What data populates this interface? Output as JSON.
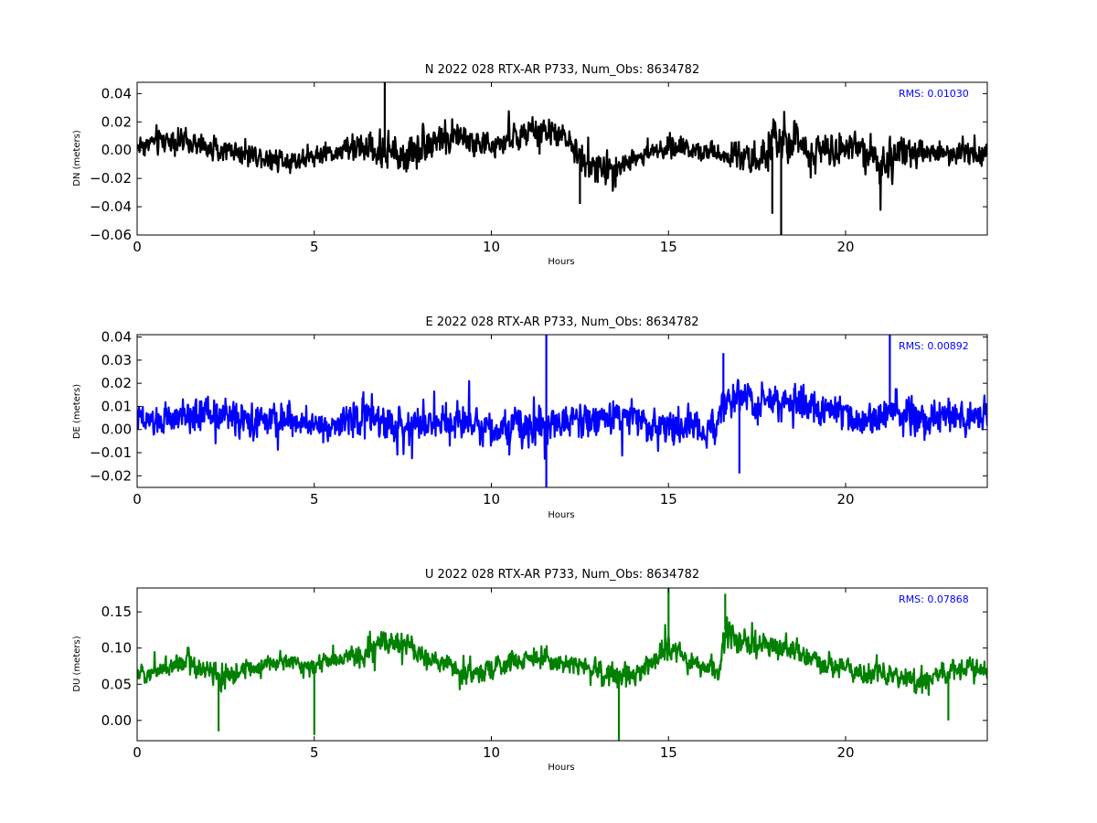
{
  "chart_data": [
    {
      "type": "line",
      "title": "N 2022 028 RTX-AR  P733, Num_Obs: 8634782",
      "xlabel": "Hours",
      "ylabel": "DN (meters)",
      "xlim": [
        0,
        24
      ],
      "ylim": [
        -0.06,
        0.048
      ],
      "xticks": [
        0,
        5,
        10,
        15,
        20
      ],
      "xtick_labels": [
        "0",
        "5",
        "10",
        "15",
        "20"
      ],
      "yticks": [
        -0.06,
        -0.04,
        -0.02,
        0.0,
        0.02,
        0.04
      ],
      "ytick_labels": [
        "−0.06",
        "−0.04",
        "−0.02",
        "0.00",
        "0.02",
        "0.04"
      ],
      "annotation": "RMS:  0.01030",
      "annotation_color": "#0000ff",
      "grid": false,
      "series": [
        {
          "color": "#000000",
          "x": [
            0,
            0.5,
            1,
            1.5,
            2,
            2.5,
            3,
            3.5,
            4,
            4.5,
            5,
            5.5,
            6,
            6.5,
            7,
            7.5,
            8,
            8.5,
            9,
            9.5,
            10,
            10.5,
            11,
            11.5,
            12,
            12.5,
            13,
            13.5,
            14,
            14.5,
            15,
            15.5,
            16,
            16.5,
            17,
            17.5,
            18,
            18.5,
            19,
            19.5,
            20,
            20.5,
            21,
            21.5,
            22,
            22.5,
            23,
            23.5,
            24
          ],
          "y_center": [
            0.003,
            0.006,
            0.008,
            0.004,
            0.002,
            0.0,
            -0.002,
            -0.004,
            -0.006,
            -0.007,
            -0.004,
            -0.002,
            0.0,
            0.002,
            -0.002,
            -0.004,
            0.004,
            0.008,
            0.01,
            0.006,
            0.002,
            0.008,
            0.012,
            0.013,
            0.01,
            -0.004,
            -0.014,
            -0.012,
            -0.006,
            -0.002,
            0.002,
            0.002,
            0.0,
            -0.002,
            -0.004,
            -0.006,
            0.004,
            0.006,
            0.0,
            0.002,
            0.004,
            0.003,
            -0.012,
            -0.006,
            -0.002,
            0.0,
            -0.002,
            -0.001,
            0.0
          ],
          "y_amplitude": [
            0.017,
            0.02,
            0.018,
            0.016,
            0.016,
            0.015,
            0.014,
            0.015,
            0.018,
            0.014,
            0.012,
            0.013,
            0.018,
            0.026,
            0.032,
            0.03,
            0.026,
            0.026,
            0.024,
            0.02,
            0.018,
            0.02,
            0.02,
            0.02,
            0.018,
            0.022,
            0.024,
            0.02,
            0.016,
            0.015,
            0.016,
            0.016,
            0.016,
            0.016,
            0.018,
            0.024,
            0.034,
            0.03,
            0.024,
            0.022,
            0.026,
            0.028,
            0.034,
            0.026,
            0.02,
            0.018,
            0.018,
            0.016,
            0.016
          ],
          "spikes": [
            [
              6.99,
              0.048
            ],
            [
              18.18,
              -0.06
            ],
            [
              17.93,
              -0.045
            ],
            [
              12.5,
              -0.038
            ]
          ]
        }
      ]
    },
    {
      "type": "line",
      "title": "E 2022 028 RTX-AR  P733, Num_Obs: 8634782",
      "xlabel": "Hours",
      "ylabel": "DE (meters)",
      "xlim": [
        0,
        24
      ],
      "ylim": [
        -0.025,
        0.041
      ],
      "xticks": [
        0,
        5,
        10,
        15,
        20
      ],
      "xtick_labels": [
        "0",
        "5",
        "10",
        "15",
        "20"
      ],
      "yticks": [
        -0.02,
        -0.01,
        0.0,
        0.01,
        0.02,
        0.03,
        0.04
      ],
      "ytick_labels": [
        "−0.02",
        "−0.01",
        "0.00",
        "0.01",
        "0.02",
        "0.03",
        "0.04"
      ],
      "annotation": "RMS:  0.00892",
      "annotation_color": "#0000ff",
      "grid": false,
      "series": [
        {
          "color": "#0000ff",
          "x": [
            0,
            0.5,
            1,
            1.5,
            2,
            2.5,
            3,
            3.5,
            4,
            4.5,
            5,
            5.5,
            6,
            6.5,
            7,
            7.5,
            8,
            8.5,
            9,
            9.5,
            10,
            10.5,
            11,
            11.5,
            12,
            12.5,
            13,
            13.5,
            14,
            14.5,
            15,
            15.5,
            16,
            16.4,
            16.6,
            17,
            17.5,
            18,
            18.5,
            19,
            19.5,
            20,
            20.5,
            21,
            21.5,
            22,
            22.5,
            23,
            23.5,
            24
          ],
          "y_center": [
            0.004,
            0.003,
            0.004,
            0.006,
            0.007,
            0.006,
            0.004,
            0.003,
            0.004,
            0.004,
            0.002,
            0.002,
            0.004,
            0.006,
            0.002,
            0.001,
            0.003,
            0.004,
            0.004,
            0.004,
            0.001,
            0.0,
            0.002,
            0.003,
            0.004,
            0.005,
            0.004,
            0.006,
            0.005,
            0.003,
            0.001,
            0.0,
            0.0,
            0.002,
            0.014,
            0.012,
            0.011,
            0.013,
            0.012,
            0.01,
            0.008,
            0.006,
            0.004,
            0.006,
            0.007,
            0.004,
            0.004,
            0.005,
            0.006,
            0.006
          ],
          "y_amplitude": [
            0.012,
            0.012,
            0.013,
            0.016,
            0.017,
            0.016,
            0.014,
            0.014,
            0.014,
            0.013,
            0.012,
            0.013,
            0.015,
            0.018,
            0.018,
            0.017,
            0.016,
            0.016,
            0.016,
            0.015,
            0.016,
            0.017,
            0.017,
            0.018,
            0.016,
            0.016,
            0.015,
            0.016,
            0.015,
            0.015,
            0.016,
            0.015,
            0.014,
            0.014,
            0.016,
            0.014,
            0.016,
            0.018,
            0.018,
            0.015,
            0.014,
            0.015,
            0.015,
            0.018,
            0.02,
            0.018,
            0.016,
            0.016,
            0.016,
            0.015
          ],
          "spikes": [
            [
              11.55,
              0.041
            ],
            [
              11.55,
              -0.025
            ],
            [
              21.25,
              0.041
            ],
            [
              17.0,
              -0.019
            ],
            [
              16.55,
              0.033
            ]
          ]
        }
      ]
    },
    {
      "type": "line",
      "title": "U 2022 028 RTX-AR  P733, Num_Obs: 8634782",
      "xlabel": "Hours",
      "ylabel": "DU (meters)",
      "xlim": [
        0,
        24
      ],
      "ylim": [
        -0.028,
        0.183
      ],
      "xticks": [
        0,
        5,
        10,
        15,
        20
      ],
      "xtick_labels": [
        "0",
        "5",
        "10",
        "15",
        "20"
      ],
      "yticks": [
        0.0,
        0.05,
        0.1,
        0.15
      ],
      "ytick_labels": [
        "0.00",
        "0.05",
        "0.10",
        "0.15"
      ],
      "annotation": "RMS:  0.07868",
      "annotation_color": "#0000ff",
      "grid": false,
      "series": [
        {
          "color": "#008000",
          "x": [
            0,
            0.5,
            1,
            1.5,
            2,
            2.5,
            3,
            3.5,
            4,
            4.5,
            5,
            5.5,
            6,
            6.5,
            7,
            7.5,
            8,
            8.5,
            9,
            9.5,
            10,
            10.5,
            11,
            11.5,
            12,
            12.5,
            13,
            13.5,
            14,
            14.5,
            15,
            15.5,
            16,
            16.4,
            16.6,
            17,
            17.5,
            18,
            18.5,
            19,
            19.5,
            20,
            20.5,
            21,
            21.5,
            22,
            22.5,
            23,
            23.5,
            24
          ],
          "y_center": [
            0.062,
            0.07,
            0.075,
            0.08,
            0.07,
            0.055,
            0.07,
            0.075,
            0.08,
            0.08,
            0.075,
            0.085,
            0.085,
            0.095,
            0.11,
            0.105,
            0.09,
            0.08,
            0.07,
            0.065,
            0.07,
            0.08,
            0.085,
            0.085,
            0.08,
            0.075,
            0.07,
            0.06,
            0.065,
            0.08,
            0.1,
            0.085,
            0.07,
            0.065,
            0.125,
            0.115,
            0.105,
            0.1,
            0.095,
            0.085,
            0.075,
            0.07,
            0.06,
            0.065,
            0.06,
            0.05,
            0.06,
            0.07,
            0.075,
            0.07
          ],
          "y_amplitude": [
            0.02,
            0.03,
            0.035,
            0.035,
            0.035,
            0.04,
            0.03,
            0.025,
            0.025,
            0.025,
            0.03,
            0.028,
            0.03,
            0.035,
            0.035,
            0.035,
            0.03,
            0.03,
            0.028,
            0.028,
            0.03,
            0.03,
            0.028,
            0.028,
            0.028,
            0.03,
            0.035,
            0.04,
            0.035,
            0.035,
            0.045,
            0.035,
            0.025,
            0.025,
            0.04,
            0.04,
            0.038,
            0.035,
            0.035,
            0.03,
            0.03,
            0.03,
            0.03,
            0.03,
            0.03,
            0.03,
            0.028,
            0.028,
            0.028,
            0.025
          ],
          "spikes": [
            [
              15.0,
              0.183
            ],
            [
              13.6,
              -0.028
            ],
            [
              5.0,
              -0.02
            ],
            [
              2.3,
              -0.015
            ],
            [
              22.9,
              0.0
            ],
            [
              16.6,
              0.175
            ]
          ]
        }
      ]
    }
  ]
}
